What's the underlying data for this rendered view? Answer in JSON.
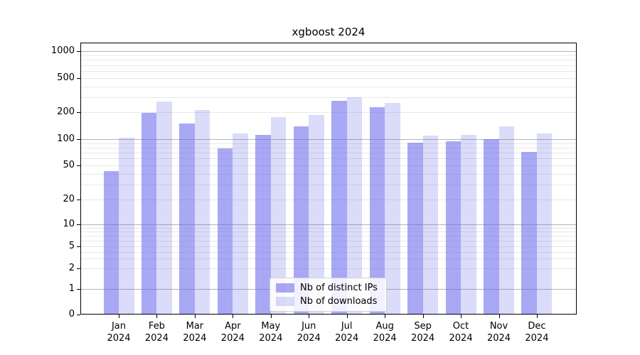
{
  "chart_data": {
    "type": "bar",
    "title": "xgboost 2024",
    "months": [
      "Jan",
      "Feb",
      "Mar",
      "Apr",
      "May",
      "Jun",
      "Jul",
      "Aug",
      "Sep",
      "Oct",
      "Nov",
      "Dec"
    ],
    "year_label": "2024",
    "categories": [
      "Jan 2024",
      "Feb 2024",
      "Mar 2024",
      "Apr 2024",
      "May 2024",
      "Jun 2024",
      "Jul 2024",
      "Aug 2024",
      "Sep 2024",
      "Oct 2024",
      "Nov 2024",
      "Dec 2024"
    ],
    "series": [
      {
        "name": "Nb of distinct IPs",
        "values": [
          43,
          196,
          150,
          78,
          112,
          140,
          271,
          230,
          91,
          94,
          100,
          71
        ]
      },
      {
        "name": "Nb of downloads",
        "values": [
          104,
          265,
          210,
          116,
          175,
          185,
          300,
          255,
          110,
          112,
          140,
          115
        ]
      }
    ],
    "yscale": "symlog",
    "y_tick_values": [
      0,
      1,
      2,
      5,
      10,
      20,
      50,
      100,
      200,
      500,
      1000
    ],
    "y_tick_labels": [
      "0",
      "1",
      "2",
      "5",
      "10",
      "20",
      "50",
      "100",
      "200",
      "500",
      "1000"
    ],
    "ylim": [
      0,
      1400
    ],
    "grid": "horizontal-major-and-minor",
    "legend_position": "lower-center"
  },
  "colors": {
    "bar_base": "#6464eb",
    "ips_alpha": 0.56,
    "downloads_alpha": 0.23,
    "major_grid": "#b3b3b3",
    "minor_grid": "#e8e8e8",
    "frame": "#000000",
    "text": "#000000",
    "legend_border": "#d2d2d2"
  }
}
